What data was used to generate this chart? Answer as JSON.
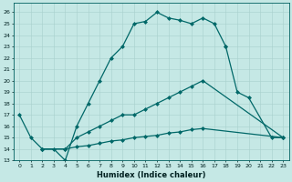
{
  "xlabel": "Humidex (Indice chaleur)",
  "bg_color": "#c5e8e5",
  "grid_color": "#a8d0cc",
  "line_color": "#006868",
  "xlim": [
    -0.5,
    23.5
  ],
  "ylim": [
    13,
    26.8
  ],
  "yticks": [
    13,
    14,
    15,
    16,
    17,
    18,
    19,
    20,
    21,
    22,
    23,
    24,
    25,
    26
  ],
  "xticks": [
    0,
    1,
    2,
    3,
    4,
    5,
    6,
    7,
    8,
    9,
    10,
    11,
    12,
    13,
    14,
    15,
    16,
    17,
    18,
    19,
    20,
    21,
    22,
    23
  ],
  "line1_x": [
    0,
    1,
    2,
    3,
    4,
    5,
    6,
    7,
    8,
    9,
    10,
    11,
    12,
    13,
    14,
    15,
    16,
    17,
    18
  ],
  "line1_y": [
    17,
    15,
    14,
    14,
    13,
    16,
    18,
    20,
    22,
    23,
    25,
    25.2,
    26,
    25.5,
    25.3,
    25,
    25.5,
    25,
    23
  ],
  "line2_x": [
    18,
    19,
    20,
    22,
    23
  ],
  "line2_y": [
    23,
    19,
    18.5,
    15,
    15
  ],
  "line3_x": [
    2,
    4,
    5,
    6,
    7,
    8,
    9,
    10,
    11,
    12,
    13,
    14,
    15,
    16,
    23
  ],
  "line3_y": [
    14,
    14,
    15,
    15.5,
    16,
    16.5,
    17,
    17,
    17.5,
    18,
    18.5,
    19,
    19.5,
    20,
    15
  ],
  "line4_x": [
    2,
    4,
    5,
    6,
    7,
    8,
    9,
    10,
    11,
    12,
    13,
    14,
    15,
    16,
    23
  ],
  "line4_y": [
    14,
    14,
    14.2,
    14.3,
    14.5,
    14.7,
    14.8,
    15,
    15.1,
    15.2,
    15.4,
    15.5,
    15.7,
    15.8,
    15
  ]
}
